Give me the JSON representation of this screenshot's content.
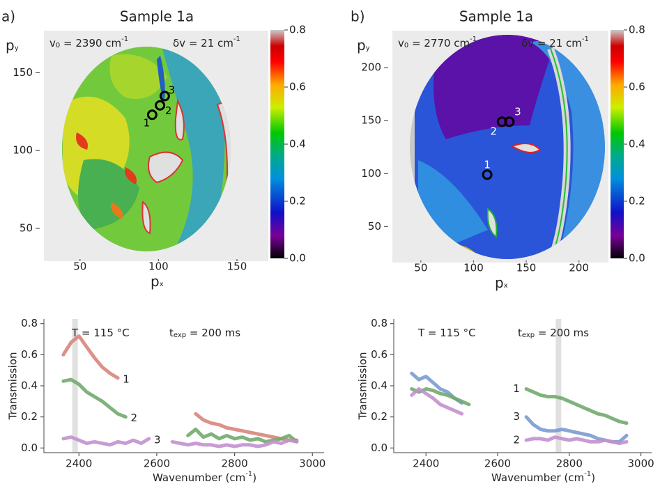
{
  "chart_data": [
    {
      "type": "map",
      "panel_label": "a)",
      "title": "Sample 1a",
      "annotations": [
        [
          {
            "t": "v"
          },
          {
            "sub": "0"
          },
          {
            "t": " = 2390 cm"
          },
          {
            "sup": "-1"
          }
        ],
        [
          {
            "t": "δv = 21 cm"
          },
          {
            "sup": "-1"
          }
        ]
      ],
      "xlabel": [
        {
          "t": "p"
        },
        {
          "sub": "x"
        }
      ],
      "ylabel": [
        {
          "t": "p"
        },
        {
          "sub": "y"
        }
      ],
      "xlim": [
        27,
        170
      ],
      "xticks": [
        50,
        100,
        150
      ],
      "ylim": [
        29,
        177
      ],
      "yticks": [
        50,
        100,
        150
      ],
      "colorbar": {
        "lim": [
          0,
          0.8
        ],
        "ticks": [
          {
            "value": 0,
            "label": "0.0"
          },
          0.2,
          0.4,
          0.6,
          0.8
        ]
      },
      "points": [
        {
          "label": "1",
          "x": 96,
          "y": 123
        },
        {
          "label": "2",
          "x": 101,
          "y": 129
        },
        {
          "label": "3",
          "x": 104,
          "y": 135
        }
      ]
    },
    {
      "type": "map",
      "panel_label": "b)",
      "title": "Sample 1a",
      "annotations": [
        [
          {
            "t": "v"
          },
          {
            "sub": "0"
          },
          {
            "t": " = 2770 cm"
          },
          {
            "sup": "-1"
          }
        ],
        [
          {
            "t": "δv = 21 cm"
          },
          {
            "sup": "-1"
          }
        ]
      ],
      "xlabel": [
        {
          "t": "p"
        },
        {
          "sub": "x"
        }
      ],
      "ylabel": [
        {
          "t": "p"
        },
        {
          "sub": "y"
        }
      ],
      "xlim": [
        23,
        228
      ],
      "xticks": [
        50,
        100,
        150,
        200
      ],
      "ylim": [
        16,
        235
      ],
      "yticks": [
        50,
        100,
        150,
        200
      ],
      "colorbar": {
        "lim": [
          0,
          0.8
        ],
        "ticks": [
          {
            "value": 0,
            "label": "0.0"
          },
          0.2,
          0.4,
          0.6,
          0.8
        ]
      },
      "points": [
        {
          "label": "1",
          "x": 113,
          "y": 99
        },
        {
          "label": "2",
          "x": 127,
          "y": 149
        },
        {
          "label": "3",
          "x": 134,
          "y": 149
        }
      ]
    },
    {
      "type": "line",
      "annotations": [
        [
          {
            "t": "T = 115 °C"
          }
        ],
        [
          {
            "t": "t"
          },
          {
            "sub": "exp"
          },
          {
            "t": " = 200 ms"
          }
        ]
      ],
      "xlabel": [
        {
          "t": "Wavenumber (cm"
        },
        {
          "sup": "-1"
        },
        {
          "t": ")"
        }
      ],
      "ylabel": "Transmission",
      "xlim": [
        2310,
        3030
      ],
      "xticks": [
        2400,
        2600,
        2800,
        3000
      ],
      "ylim": [
        -0.03,
        0.83
      ],
      "yticks": [
        {
          "value": 0,
          "label": "0.0"
        },
        0.2,
        0.4,
        0.6,
        0.8
      ],
      "band": 2390,
      "x": [
        2360,
        2380,
        2400,
        2420,
        2440,
        2460,
        2480,
        2500,
        2520,
        2540,
        2560,
        2580,
        2600,
        2620,
        2640,
        2660,
        2680,
        2700,
        2720,
        2740,
        2760,
        2780,
        2800,
        2820,
        2840,
        2860,
        2880,
        2900,
        2920,
        2940,
        2960
      ],
      "series": [
        {
          "name": "1",
          "color": "#d9857c",
          "values": [
            0.6,
            0.68,
            0.72,
            0.65,
            0.58,
            0.52,
            0.48,
            0.45,
            null,
            null,
            null,
            null,
            null,
            null,
            null,
            null,
            null,
            0.22,
            0.18,
            0.16,
            0.15,
            0.13,
            0.12,
            0.11,
            0.1,
            0.09,
            0.08,
            0.07,
            0.06,
            0.05,
            0.05
          ]
        },
        {
          "name": "2",
          "color": "#72aa6e",
          "values": [
            0.43,
            0.44,
            0.41,
            0.36,
            0.33,
            0.3,
            0.26,
            0.22,
            0.2,
            null,
            null,
            null,
            null,
            null,
            null,
            null,
            0.08,
            0.12,
            0.07,
            0.09,
            0.06,
            0.08,
            0.06,
            0.07,
            0.05,
            0.06,
            0.04,
            0.05,
            0.06,
            0.08,
            0.04
          ]
        },
        {
          "name": "3",
          "color": "#c390cf",
          "values": [
            0.06,
            0.07,
            0.05,
            0.03,
            0.04,
            0.03,
            0.02,
            0.04,
            0.03,
            0.05,
            0.03,
            0.06,
            null,
            null,
            0.04,
            0.03,
            0.02,
            0.03,
            0.02,
            0.02,
            0.01,
            0.02,
            0.01,
            0.02,
            0.02,
            0.01,
            0.02,
            0.04,
            0.03,
            0.05,
            0.04
          ]
        }
      ]
    },
    {
      "type": "line",
      "annotations": [
        [
          {
            "t": "T = 115 °C"
          }
        ],
        [
          {
            "t": "t"
          },
          {
            "sub": "exp"
          },
          {
            "t": " = 200 ms"
          }
        ]
      ],
      "xlabel": [
        {
          "t": "Wavenumber (cm"
        },
        {
          "sup": "-1"
        },
        {
          "t": ")"
        }
      ],
      "ylabel": "Transmission",
      "xlim": [
        2310,
        3030
      ],
      "xticks": [
        2400,
        2600,
        2800,
        3000
      ],
      "ylim": [
        -0.03,
        0.83
      ],
      "yticks": [
        {
          "value": 0,
          "label": "0.0"
        },
        0.2,
        0.4,
        0.6,
        0.8
      ],
      "band": 2770,
      "x": [
        2360,
        2380,
        2400,
        2420,
        2440,
        2460,
        2480,
        2500,
        2520,
        2540,
        2560,
        2580,
        2600,
        2620,
        2640,
        2660,
        2680,
        2700,
        2720,
        2740,
        2760,
        2780,
        2800,
        2820,
        2840,
        2860,
        2880,
        2900,
        2920,
        2940,
        2960
      ],
      "series": [
        {
          "name": "3",
          "color": "#7a9bd0",
          "values": [
            0.48,
            0.44,
            0.46,
            0.42,
            0.38,
            0.36,
            0.32,
            0.29,
            null,
            null,
            null,
            null,
            null,
            null,
            null,
            null,
            0.2,
            0.15,
            0.12,
            0.11,
            0.11,
            0.12,
            0.11,
            0.1,
            0.09,
            0.08,
            0.06,
            0.05,
            0.04,
            0.04,
            0.08
          ]
        },
        {
          "name": "1",
          "color": "#72aa6e",
          "values": [
            0.38,
            0.36,
            0.38,
            0.37,
            0.35,
            0.34,
            0.32,
            0.3,
            0.28,
            null,
            null,
            null,
            null,
            null,
            null,
            null,
            0.38,
            0.36,
            0.34,
            0.33,
            0.33,
            0.32,
            0.3,
            0.28,
            0.26,
            0.24,
            0.22,
            0.21,
            0.19,
            0.17,
            0.16
          ]
        },
        {
          "name": "2",
          "color": "#c390cf",
          "values": [
            0.34,
            0.38,
            0.35,
            0.32,
            0.28,
            0.26,
            0.24,
            0.22,
            null,
            null,
            null,
            null,
            null,
            null,
            null,
            null,
            0.05,
            0.06,
            0.06,
            0.05,
            0.07,
            0.06,
            0.05,
            0.06,
            0.05,
            0.04,
            0.04,
            0.05,
            0.04,
            0.03,
            0.04
          ]
        }
      ]
    }
  ]
}
